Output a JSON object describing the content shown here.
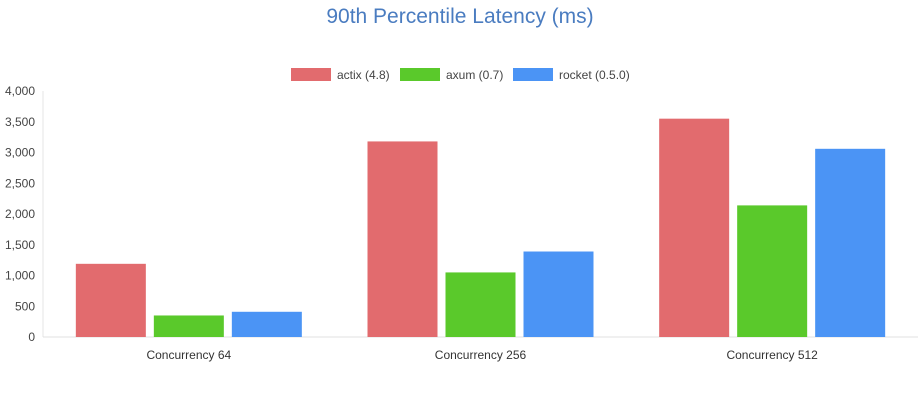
{
  "chart_data": {
    "type": "bar",
    "title": "90th Percentile Latency (ms)",
    "categories": [
      "Concurrency 64",
      "Concurrency 256",
      "Concurrency 512"
    ],
    "series": [
      {
        "name": "actix (4.8)",
        "color": "#e26b6e",
        "values": [
          1190,
          3180,
          3550
        ]
      },
      {
        "name": "axum (0.7)",
        "color": "#5ac92b",
        "values": [
          350,
          1050,
          2140
        ]
      },
      {
        "name": "rocket (0.5.0)",
        "color": "#4b94f5",
        "values": [
          410,
          1390,
          3060
        ]
      }
    ],
    "ylim": [
      0,
      4000
    ],
    "yticks": [
      "0",
      "500",
      "1,000",
      "1,500",
      "2,000",
      "2,500",
      "3,000",
      "3,500",
      "4,000"
    ],
    "ytick_values": [
      0,
      500,
      1000,
      1500,
      2000,
      2500,
      3000,
      3500,
      4000
    ],
    "legend_position": "top-center",
    "grid": false
  }
}
